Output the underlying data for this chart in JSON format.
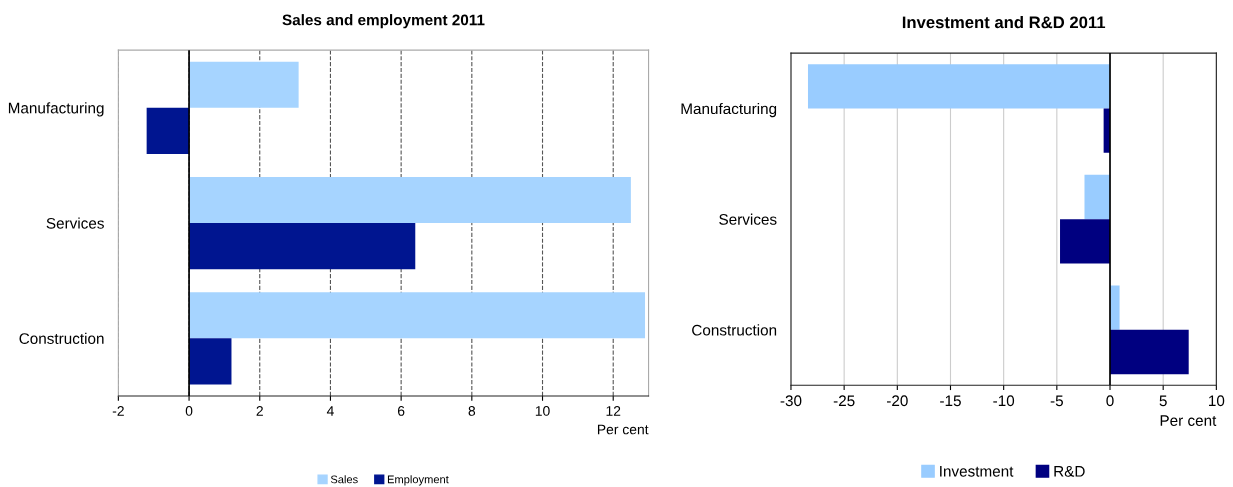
{
  "chart_data": [
    {
      "type": "bar",
      "orientation": "horizontal",
      "title": "Sales and employment 2011",
      "xlabel": "Per cent",
      "categories": [
        "Manufacturing",
        "Services",
        "Construction"
      ],
      "series": [
        {
          "name": "Sales",
          "color": "#a6d4ff",
          "values": [
            3.1,
            12.5,
            12.9
          ]
        },
        {
          "name": "Employment",
          "color": "#001590",
          "values": [
            -1.2,
            6.4,
            1.2
          ]
        }
      ],
      "xlim": [
        -2,
        13
      ],
      "xticks": [
        -2,
        0,
        2,
        4,
        6,
        8,
        10,
        12
      ],
      "grid": "x",
      "legend": "bottom"
    },
    {
      "type": "bar",
      "orientation": "horizontal",
      "title": "Investment and R&D 2011",
      "xlabel": "Per cent",
      "categories": [
        "Manufacturing",
        "Services",
        "Construction"
      ],
      "series": [
        {
          "name": "Investment",
          "color": "#99ccff",
          "values": [
            -28.4,
            -2.4,
            0.9
          ]
        },
        {
          "name": "R&D",
          "color": "#000080",
          "values": [
            -0.6,
            -4.7,
            7.4
          ]
        }
      ],
      "xlim": [
        -30,
        10
      ],
      "xticks": [
        -30,
        -25,
        -20,
        -15,
        -10,
        -5,
        0,
        5,
        10
      ],
      "grid": "x",
      "legend": "bottom"
    }
  ]
}
